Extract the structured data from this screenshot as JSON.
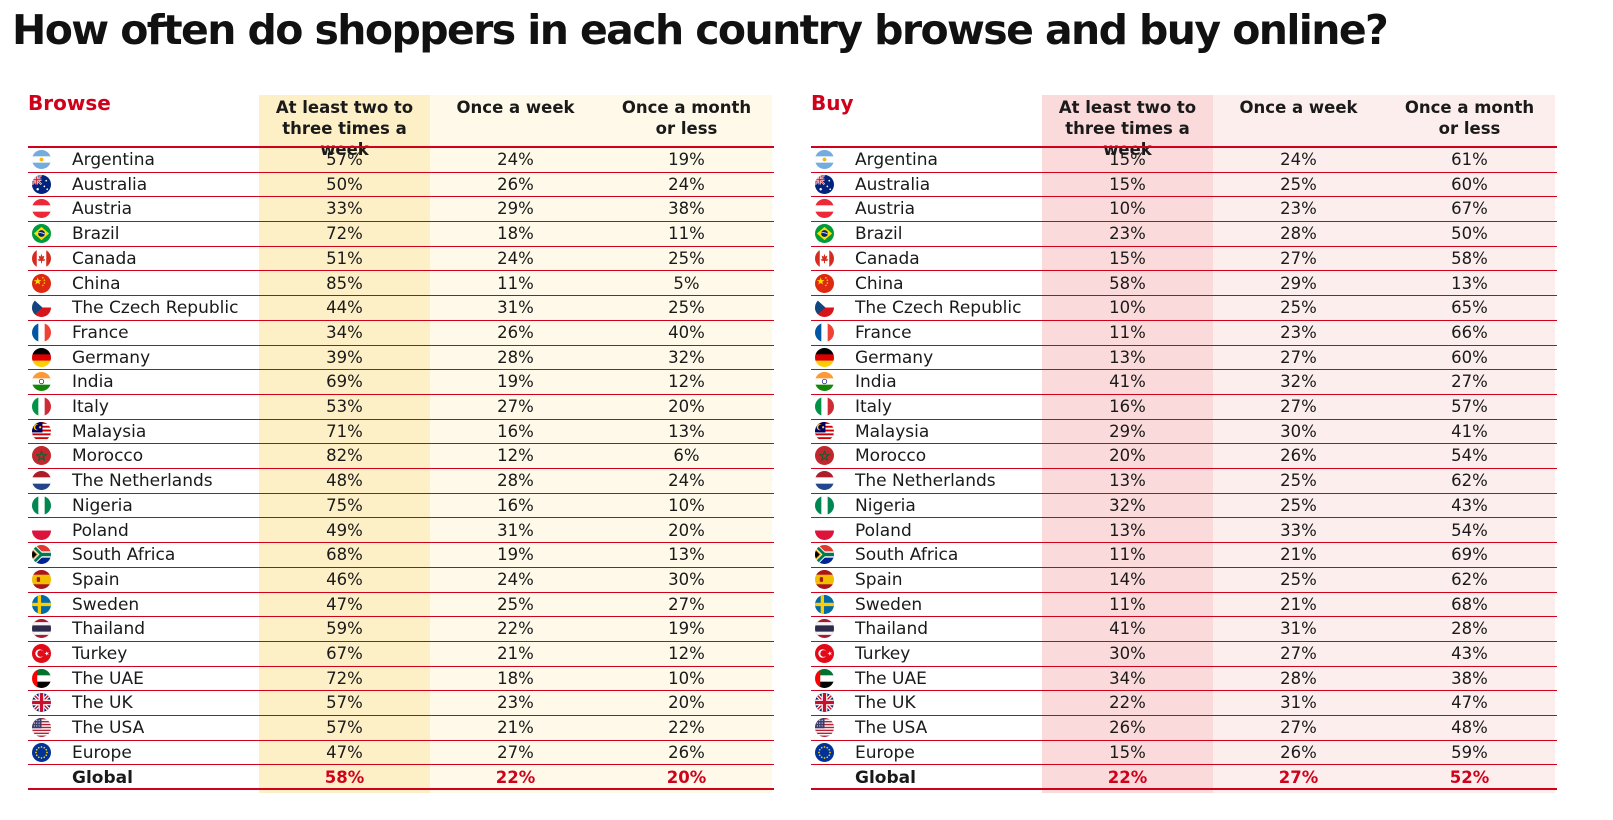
{
  "title": "How often do shoppers in each country browse and buy online?",
  "chart_data": [
    {
      "type": "table",
      "name": "Browse",
      "columns": [
        "At least two to three times a week",
        "Once a week",
        "Once a month or less"
      ],
      "rows": [
        {
          "country": "Argentina",
          "values": [
            "57%",
            "24%",
            "19%"
          ]
        },
        {
          "country": "Australia",
          "values": [
            "50%",
            "26%",
            "24%"
          ]
        },
        {
          "country": "Austria",
          "values": [
            "33%",
            "29%",
            "38%"
          ]
        },
        {
          "country": "Brazil",
          "values": [
            "72%",
            "18%",
            "11%"
          ]
        },
        {
          "country": "Canada",
          "values": [
            "51%",
            "24%",
            "25%"
          ]
        },
        {
          "country": "China",
          "values": [
            "85%",
            "11%",
            "5%"
          ]
        },
        {
          "country": "The Czech Republic",
          "values": [
            "44%",
            "31%",
            "25%"
          ]
        },
        {
          "country": "France",
          "values": [
            "34%",
            "26%",
            "40%"
          ]
        },
        {
          "country": "Germany",
          "values": [
            "39%",
            "28%",
            "32%"
          ]
        },
        {
          "country": "India",
          "values": [
            "69%",
            "19%",
            "12%"
          ]
        },
        {
          "country": "Italy",
          "values": [
            "53%",
            "27%",
            "20%"
          ]
        },
        {
          "country": "Malaysia",
          "values": [
            "71%",
            "16%",
            "13%"
          ]
        },
        {
          "country": "Morocco",
          "values": [
            "82%",
            "12%",
            "6%"
          ]
        },
        {
          "country": "The Netherlands",
          "values": [
            "48%",
            "28%",
            "24%"
          ]
        },
        {
          "country": "Nigeria",
          "values": [
            "75%",
            "16%",
            "10%"
          ]
        },
        {
          "country": "Poland",
          "values": [
            "49%",
            "31%",
            "20%"
          ]
        },
        {
          "country": "South Africa",
          "values": [
            "68%",
            "19%",
            "13%"
          ]
        },
        {
          "country": "Spain",
          "values": [
            "46%",
            "24%",
            "30%"
          ]
        },
        {
          "country": "Sweden",
          "values": [
            "47%",
            "25%",
            "27%"
          ]
        },
        {
          "country": "Thailand",
          "values": [
            "59%",
            "22%",
            "19%"
          ]
        },
        {
          "country": "Turkey",
          "values": [
            "67%",
            "21%",
            "12%"
          ]
        },
        {
          "country": "The UAE",
          "values": [
            "72%",
            "18%",
            "10%"
          ]
        },
        {
          "country": "The UK",
          "values": [
            "57%",
            "23%",
            "20%"
          ]
        },
        {
          "country": "The USA",
          "values": [
            "57%",
            "21%",
            "22%"
          ]
        },
        {
          "country": "Europe",
          "values": [
            "47%",
            "27%",
            "26%"
          ]
        },
        {
          "country": "Global",
          "values": [
            "58%",
            "22%",
            "20%"
          ]
        }
      ]
    },
    {
      "type": "table",
      "name": "Buy",
      "columns": [
        "At least two to three times a week",
        "Once a week",
        "Once a month or less"
      ],
      "rows": [
        {
          "country": "Argentina",
          "values": [
            "15%",
            "24%",
            "61%"
          ]
        },
        {
          "country": "Australia",
          "values": [
            "15%",
            "25%",
            "60%"
          ]
        },
        {
          "country": "Austria",
          "values": [
            "10%",
            "23%",
            "67%"
          ]
        },
        {
          "country": "Brazil",
          "values": [
            "23%",
            "28%",
            "50%"
          ]
        },
        {
          "country": "Canada",
          "values": [
            "15%",
            "27%",
            "58%"
          ]
        },
        {
          "country": "China",
          "values": [
            "58%",
            "29%",
            "13%"
          ]
        },
        {
          "country": "The Czech Republic",
          "values": [
            "10%",
            "25%",
            "65%"
          ]
        },
        {
          "country": "France",
          "values": [
            "11%",
            "23%",
            "66%"
          ]
        },
        {
          "country": "Germany",
          "values": [
            "13%",
            "27%",
            "60%"
          ]
        },
        {
          "country": "India",
          "values": [
            "41%",
            "32%",
            "27%"
          ]
        },
        {
          "country": "Italy",
          "values": [
            "16%",
            "27%",
            "57%"
          ]
        },
        {
          "country": "Malaysia",
          "values": [
            "29%",
            "30%",
            "41%"
          ]
        },
        {
          "country": "Morocco",
          "values": [
            "20%",
            "26%",
            "54%"
          ]
        },
        {
          "country": "The Netherlands",
          "values": [
            "13%",
            "25%",
            "62%"
          ]
        },
        {
          "country": "Nigeria",
          "values": [
            "32%",
            "25%",
            "43%"
          ]
        },
        {
          "country": "Poland",
          "values": [
            "13%",
            "33%",
            "54%"
          ]
        },
        {
          "country": "South Africa",
          "values": [
            "11%",
            "21%",
            "69%"
          ]
        },
        {
          "country": "Spain",
          "values": [
            "14%",
            "25%",
            "62%"
          ]
        },
        {
          "country": "Sweden",
          "values": [
            "11%",
            "21%",
            "68%"
          ]
        },
        {
          "country": "Thailand",
          "values": [
            "41%",
            "31%",
            "28%"
          ]
        },
        {
          "country": "Turkey",
          "values": [
            "30%",
            "27%",
            "43%"
          ]
        },
        {
          "country": "The UAE",
          "values": [
            "34%",
            "28%",
            "38%"
          ]
        },
        {
          "country": "The UK",
          "values": [
            "22%",
            "31%",
            "47%"
          ]
        },
        {
          "country": "The USA",
          "values": [
            "26%",
            "27%",
            "48%"
          ]
        },
        {
          "country": "Europe",
          "values": [
            "15%",
            "26%",
            "59%"
          ]
        },
        {
          "country": "Global",
          "values": [
            "22%",
            "27%",
            "52%"
          ]
        }
      ]
    }
  ],
  "flag_icons": [
    "argentina-flag-icon",
    "australia-flag-icon",
    "austria-flag-icon",
    "brazil-flag-icon",
    "canada-flag-icon",
    "china-flag-icon",
    "czech-republic-flag-icon",
    "france-flag-icon",
    "germany-flag-icon",
    "india-flag-icon",
    "italy-flag-icon",
    "malaysia-flag-icon",
    "morocco-flag-icon",
    "netherlands-flag-icon",
    "nigeria-flag-icon",
    "poland-flag-icon",
    "south-africa-flag-icon",
    "spain-flag-icon",
    "sweden-flag-icon",
    "thailand-flag-icon",
    "turkey-flag-icon",
    "uae-flag-icon",
    "uk-flag-icon",
    "usa-flag-icon",
    "europe-flag-icon"
  ],
  "colors": {
    "accent_red": "#d0021b",
    "browse_highlight": "#fdefc6",
    "browse_column": "#fef9e8",
    "buy_highlight": "#fbdadb",
    "buy_column": "#fdeeee"
  }
}
